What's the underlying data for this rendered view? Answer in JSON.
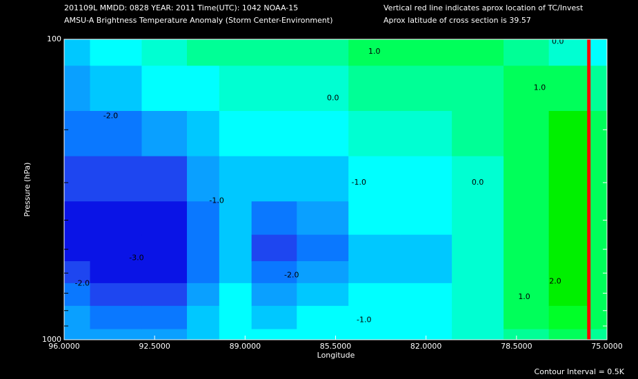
{
  "chart_data": {
    "type": "contour",
    "header": [
      "201109L  MMDD: 0828 YEAR: 2011 Time(UTC): 1042 NOAA-15",
      "AMSU-A Brightness Temperature Anomaly (Storm Center-Environment)"
    ],
    "note": [
      "Vertical red line indicates aprox location of TC/Invest",
      "Aprox latitude of cross section is 39.57"
    ],
    "xlabel": "Longitude",
    "ylabel": "Pressure (hPa)",
    "footer": "Contour Interval = 0.5K",
    "xlim": [
      96,
      75
    ],
    "xticks": [
      {
        "value": 96,
        "label": "96.0000"
      },
      {
        "value": 92.5,
        "label": "92.5000"
      },
      {
        "value": 89,
        "label": "89.0000"
      },
      {
        "value": 85.5,
        "label": "85.5000"
      },
      {
        "value": 82,
        "label": "82.0000"
      },
      {
        "value": 78.5,
        "label": "78.5000"
      },
      {
        "value": 75,
        "label": "75.0000"
      }
    ],
    "ylim": [
      1000,
      100
    ],
    "log_y": true,
    "yticks": [
      100,
      1000
    ],
    "yminor_ticks": [
      200,
      300,
      400,
      500,
      600,
      700,
      800,
      900
    ],
    "x": [
      96,
      94,
      92,
      90.5,
      89.5,
      88,
      86,
      84,
      82,
      80,
      78,
      76.5,
      75
    ],
    "y": [
      100,
      150,
      200,
      300,
      400,
      500,
      600,
      700,
      850,
      1000
    ],
    "z": [
      [
        -1.0,
        -1.5,
        -2.0,
        -2.5,
        -3.0,
        -3.0,
        -2.5,
        -2.0,
        -1.5,
        -1.5
      ],
      [
        -0.5,
        -1.0,
        -2.0,
        -2.5,
        -3.0,
        -3.0,
        -3.0,
        -2.5,
        -2.0,
        -1.5
      ],
      [
        0.0,
        -0.5,
        -1.5,
        -2.5,
        -3.0,
        -3.0,
        -3.0,
        -2.5,
        -2.0,
        -1.5
      ],
      [
        0.5,
        -0.5,
        -1.0,
        -1.5,
        -2.0,
        -2.0,
        -2.0,
        -1.5,
        -1.0,
        -1.0
      ],
      [
        0.5,
        0.0,
        -0.5,
        -1.0,
        -1.0,
        -1.0,
        -1.0,
        -0.5,
        -0.5,
        -0.5
      ],
      [
        0.5,
        0.0,
        -0.5,
        -1.0,
        -2.0,
        -2.5,
        -2.0,
        -1.5,
        -1.0,
        -0.5
      ],
      [
        0.5,
        0.0,
        -0.5,
        -1.0,
        -1.5,
        -2.0,
        -1.5,
        -1.0,
        -0.5,
        -0.5
      ],
      [
        1.0,
        0.5,
        0.0,
        -0.5,
        -0.5,
        -1.0,
        -1.0,
        -0.5,
        -0.5,
        -0.5
      ],
      [
        1.0,
        0.5,
        0.0,
        -0.5,
        -0.5,
        -1.0,
        -1.0,
        -0.5,
        -0.5,
        -0.5
      ],
      [
        1.0,
        0.5,
        0.5,
        0.0,
        0.0,
        0.0,
        0.0,
        0.0,
        0.0,
        0.0
      ],
      [
        0.5,
        1.0,
        1.0,
        1.0,
        1.0,
        1.0,
        1.0,
        1.0,
        1.0,
        0.5
      ],
      [
        0.0,
        1.0,
        2.0,
        2.0,
        2.0,
        2.0,
        2.0,
        2.0,
        1.5,
        1.0
      ],
      [
        -0.5,
        0.5,
        1.0,
        1.0,
        1.0,
        1.0,
        1.0,
        1.0,
        1.0,
        0.5
      ]
    ],
    "levels": [
      -3,
      -2.5,
      -2,
      -1.5,
      -1,
      -0.5,
      0,
      0.5,
      1,
      1.5,
      2
    ],
    "level_colors": [
      "#0a14e6",
      "#1e46f0",
      "#0a78ff",
      "#0aa0ff",
      "#00c8ff",
      "#00ffff",
      "#00ffd2",
      "#00ff96",
      "#00ff5a",
      "#00ff28",
      "#00f000"
    ],
    "contour_labels": [
      {
        "value": -2,
        "label": "-2.0",
        "x": 94.2,
        "p": 180
      },
      {
        "value": -3,
        "label": "-3.0",
        "x": 93.2,
        "p": 535
      },
      {
        "value": -2,
        "label": "-2.0",
        "x": 95.3,
        "p": 650
      },
      {
        "value": -1,
        "label": "-1.0",
        "x": 90.1,
        "p": 345
      },
      {
        "value": 0,
        "label": "0.0",
        "x": 85.6,
        "p": 157
      },
      {
        "value": -1,
        "label": "-1.0",
        "x": 84.6,
        "p": 300
      },
      {
        "value": -2,
        "label": "-2.0",
        "x": 87.2,
        "p": 610
      },
      {
        "value": -1,
        "label": "-1.0",
        "x": 84.4,
        "p": 860
      },
      {
        "value": 1,
        "label": "1.0",
        "x": 84.0,
        "p": 110
      },
      {
        "value": 0,
        "label": "0.0",
        "x": 80.0,
        "p": 300
      },
      {
        "value": 0,
        "label": "0.0",
        "x": 76.9,
        "p": 102
      },
      {
        "value": 1,
        "label": "1.0",
        "x": 77.6,
        "p": 145
      },
      {
        "value": 2,
        "label": "2.0",
        "x": 77.0,
        "p": 640
      },
      {
        "value": 1,
        "label": "1.0",
        "x": 78.2,
        "p": 720
      }
    ],
    "tc_line": {
      "x": 75.7,
      "color": "#ff0000"
    }
  }
}
